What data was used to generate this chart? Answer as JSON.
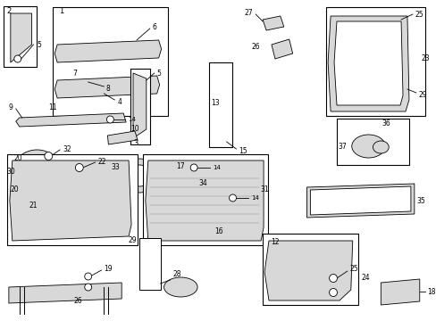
{
  "background_color": "#ffffff",
  "parts": [
    {
      "id": 1,
      "label": "1"
    },
    {
      "id": 2,
      "label": "2"
    },
    {
      "id": 3,
      "label": "3"
    },
    {
      "id": 4,
      "label": "4"
    },
    {
      "id": 5,
      "label": "5"
    },
    {
      "id": 6,
      "label": "6"
    },
    {
      "id": 7,
      "label": "7"
    },
    {
      "id": 8,
      "label": "8"
    },
    {
      "id": 9,
      "label": "9"
    },
    {
      "id": 10,
      "label": "10"
    },
    {
      "id": 11,
      "label": "11"
    },
    {
      "id": 12,
      "label": "12"
    },
    {
      "id": 13,
      "label": "13"
    },
    {
      "id": 14,
      "label": "14"
    },
    {
      "id": 15,
      "label": "15"
    },
    {
      "id": 16,
      "label": "16"
    },
    {
      "id": 17,
      "label": "17"
    },
    {
      "id": 18,
      "label": "18"
    },
    {
      "id": 19,
      "label": "19"
    },
    {
      "id": 20,
      "label": "20"
    },
    {
      "id": 21,
      "label": "21"
    },
    {
      "id": 22,
      "label": "22"
    },
    {
      "id": 23,
      "label": "23"
    },
    {
      "id": 24,
      "label": "24"
    },
    {
      "id": 25,
      "label": "25"
    },
    {
      "id": 26,
      "label": "26"
    },
    {
      "id": 27,
      "label": "27"
    },
    {
      "id": 28,
      "label": "28"
    },
    {
      "id": 29,
      "label": "29"
    },
    {
      "id": 30,
      "label": "30"
    },
    {
      "id": 31,
      "label": "31"
    },
    {
      "id": 32,
      "label": "32"
    },
    {
      "id": 33,
      "label": "33"
    },
    {
      "id": 34,
      "label": "34"
    },
    {
      "id": 35,
      "label": "35"
    },
    {
      "id": 36,
      "label": "36"
    },
    {
      "id": 37,
      "label": "37"
    }
  ],
  "line_color": "#000000",
  "part_fill": "#d8d8d8",
  "box_fill": "#ffffff"
}
